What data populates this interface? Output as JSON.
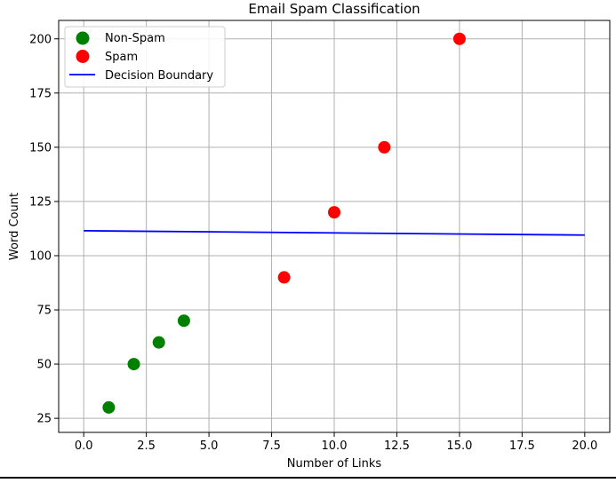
{
  "chart_data": {
    "type": "scatter",
    "title": "Email Spam Classification",
    "xlabel": "Number of Links",
    "ylabel": "Word Count",
    "xlim": [
      -1.0,
      21.0
    ],
    "ylim": [
      18.5,
      208.5
    ],
    "xticks": [
      0.0,
      2.5,
      5.0,
      7.5,
      10.0,
      12.5,
      15.0,
      17.5,
      20.0
    ],
    "xtick_labels": [
      "0.0",
      "2.5",
      "5.0",
      "7.5",
      "10.0",
      "12.5",
      "15.0",
      "17.5",
      "20.0"
    ],
    "yticks": [
      25,
      50,
      75,
      100,
      125,
      150,
      175,
      200
    ],
    "ytick_labels": [
      "25",
      "50",
      "75",
      "100",
      "125",
      "150",
      "175",
      "200"
    ],
    "grid": true,
    "legend_position": "top-left",
    "series": [
      {
        "name": "Non-Spam",
        "kind": "scatter",
        "color": "#008000",
        "x": [
          1,
          2,
          3,
          4
        ],
        "y": [
          30,
          50,
          60,
          70
        ]
      },
      {
        "name": "Spam",
        "kind": "scatter",
        "color": "#ff0000",
        "x": [
          8,
          10,
          12,
          15
        ],
        "y": [
          90,
          120,
          150,
          200
        ]
      },
      {
        "name": "Decision Boundary",
        "kind": "line",
        "color": "#0000ff",
        "x": [
          0,
          20
        ],
        "y": [
          111.5,
          109.5
        ]
      }
    ]
  }
}
